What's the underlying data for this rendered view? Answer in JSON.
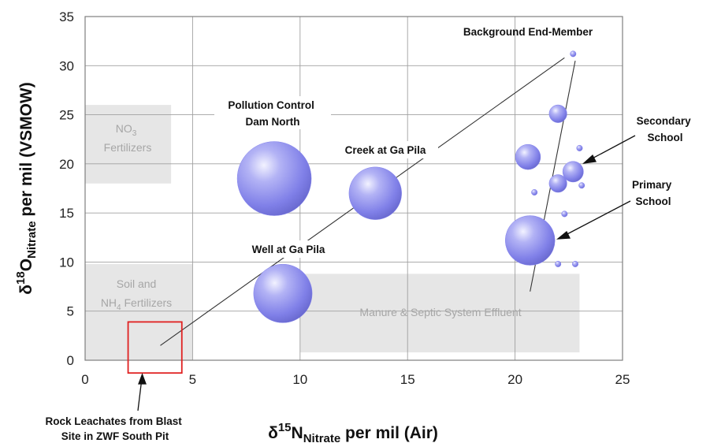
{
  "chart_data": {
    "type": "scatter",
    "subtype": "bubble",
    "xlabel": {
      "symbol": "δ",
      "sup": "15",
      "element": "N",
      "sub": "Nitrate",
      "rest": " per mil (Air)"
    },
    "ylabel": {
      "symbol": "δ",
      "sup": "18",
      "element": "O",
      "sub": "Nitrate",
      "rest": " per mil (VSMOW)"
    },
    "xlim": [
      0,
      25
    ],
    "ylim": [
      0,
      35
    ],
    "xticks": [
      "0",
      "5",
      "10",
      "15",
      "20",
      "25"
    ],
    "yticks": [
      "0",
      "5",
      "10",
      "15",
      "20",
      "25",
      "30",
      "35"
    ],
    "grid": true,
    "bubble_color": "#8585ee",
    "points": [
      {
        "x": 8.8,
        "y": 18.5,
        "size": 1.0
      },
      {
        "x": 9.2,
        "y": 6.8,
        "size": 0.79
      },
      {
        "x": 13.5,
        "y": 17.0,
        "size": 0.71
      },
      {
        "x": 20.7,
        "y": 12.2,
        "size": 0.67
      },
      {
        "x": 20.6,
        "y": 20.7,
        "size": 0.34
      },
      {
        "x": 22.0,
        "y": 25.1,
        "size": 0.24
      },
      {
        "x": 22.7,
        "y": 19.2,
        "size": 0.28
      },
      {
        "x": 22.0,
        "y": 18.0,
        "size": 0.24
      },
      {
        "x": 22.7,
        "y": 31.2,
        "size": 0.08
      },
      {
        "x": 23.0,
        "y": 21.6,
        "size": 0.08
      },
      {
        "x": 20.9,
        "y": 17.1,
        "size": 0.08
      },
      {
        "x": 23.1,
        "y": 17.8,
        "size": 0.08
      },
      {
        "x": 22.3,
        "y": 14.9,
        "size": 0.08
      },
      {
        "x": 22.0,
        "y": 9.8,
        "size": 0.08
      },
      {
        "x": 22.8,
        "y": 9.8,
        "size": 0.08
      }
    ],
    "lines": [
      {
        "x": [
          3.5,
          22.3
        ],
        "y": [
          1.5,
          30.8
        ]
      },
      {
        "x": [
          22.8,
          20.7
        ],
        "y": [
          30.5,
          7.0
        ]
      }
    ],
    "zones": [
      {
        "label_lines": [
          "NO",
          "Fertilizers"
        ],
        "label_sub": "3",
        "x": [
          0,
          4
        ],
        "y": [
          18,
          26
        ]
      },
      {
        "label_lines": [
          "Soil and",
          "NH",
          " Fertilizers"
        ],
        "label_sub": "4",
        "x": [
          0,
          5
        ],
        "y": [
          0,
          9.8
        ]
      },
      {
        "label_lines": [
          "Manure & Septic System Effluent"
        ],
        "x": [
          10,
          23
        ],
        "y": [
          0.8,
          8.8
        ]
      }
    ],
    "highlight_box": {
      "x": [
        2,
        4.5
      ],
      "y": [
        -1.3,
        3.9
      ],
      "color": "#e02020"
    },
    "annotations": [
      {
        "lines": [
          "Background End-Member"
        ]
      },
      {
        "lines": [
          "Pollution Control",
          "Dam North"
        ]
      },
      {
        "lines": [
          "Creek at Ga Pila"
        ]
      },
      {
        "lines": [
          "Well at Ga Pila"
        ]
      },
      {
        "lines": [
          "Secondary",
          "School"
        ]
      },
      {
        "lines": [
          "Primary",
          "School"
        ]
      },
      {
        "lines": [
          "Rock Leachates from Blast",
          "Site in ZWF South Pit"
        ]
      }
    ]
  }
}
